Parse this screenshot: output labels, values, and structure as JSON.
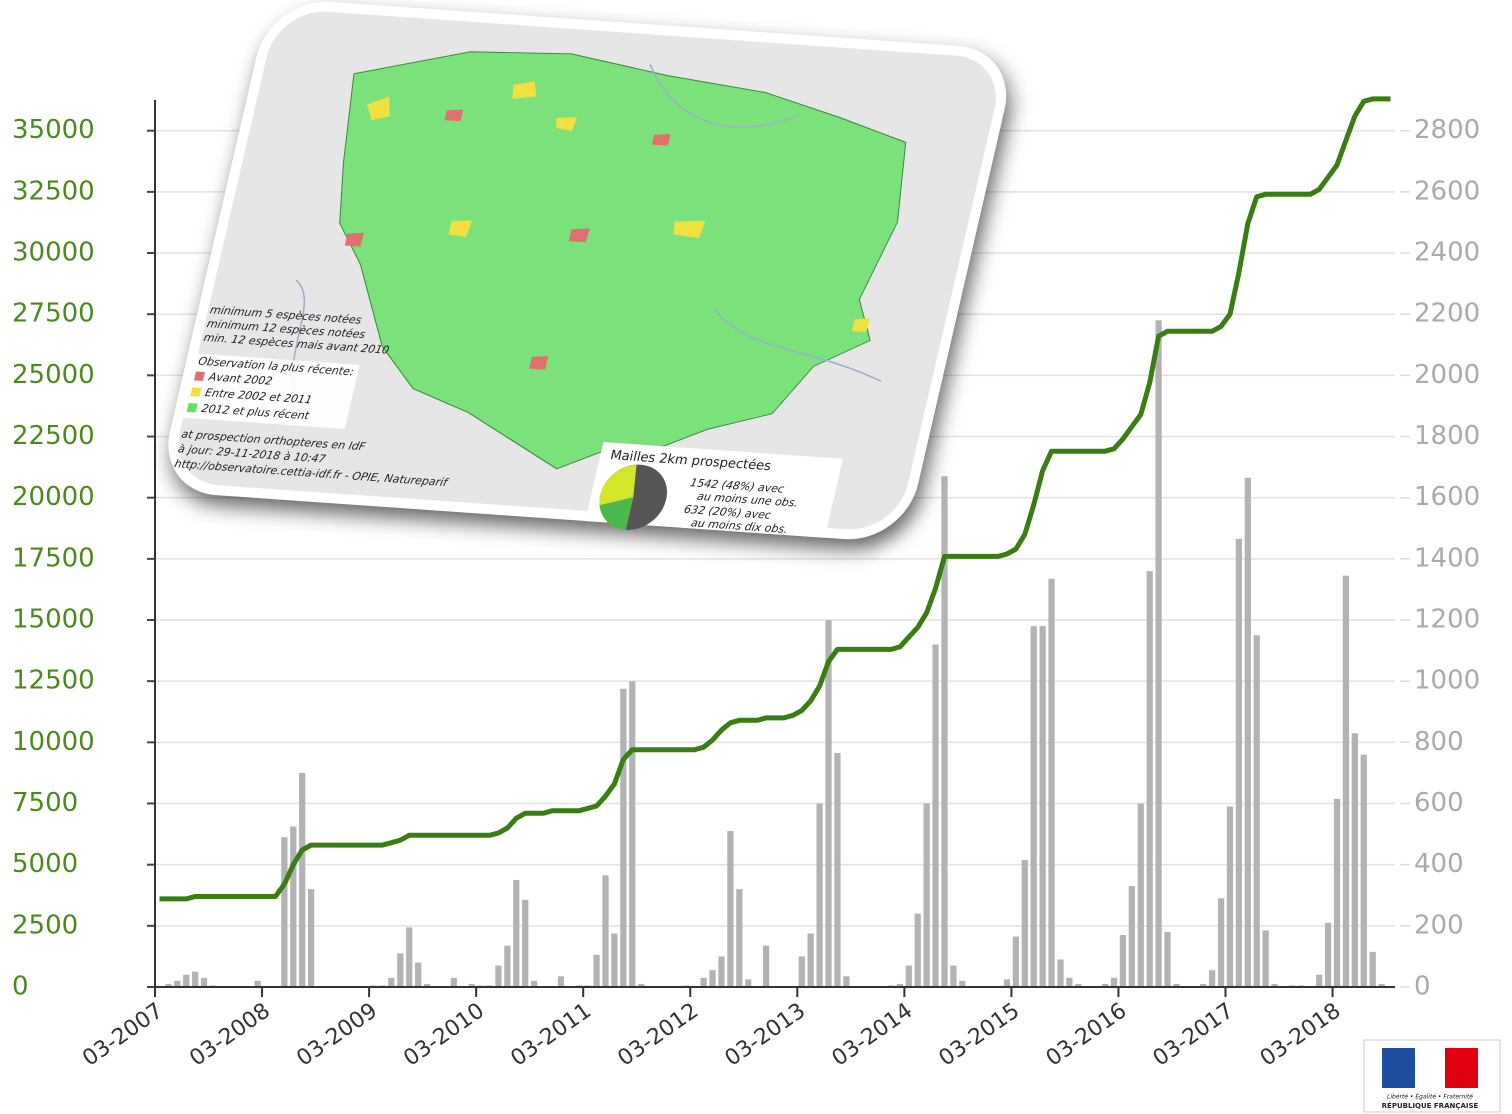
{
  "chart_data": {
    "type": "combo",
    "categories": [
      "03-2007",
      null,
      null,
      null,
      null,
      null,
      null,
      null,
      null,
      null,
      null,
      null,
      "03-2008",
      null,
      null,
      null,
      null,
      null,
      null,
      null,
      null,
      null,
      null,
      null,
      "03-2009",
      null,
      null,
      null,
      null,
      null,
      null,
      null,
      null,
      null,
      null,
      null,
      "03-2010",
      null,
      null,
      null,
      null,
      null,
      null,
      null,
      null,
      null,
      null,
      null,
      "03-2011",
      null,
      null,
      null,
      null,
      null,
      null,
      null,
      null,
      null,
      null,
      null,
      "03-2012",
      null,
      null,
      null,
      null,
      null,
      null,
      null,
      null,
      null,
      null,
      null,
      "03-2013",
      null,
      null,
      null,
      null,
      null,
      null,
      null,
      null,
      null,
      null,
      null,
      "03-2014",
      null,
      null,
      null,
      null,
      null,
      null,
      null,
      null,
      null,
      null,
      null,
      "03-2015",
      null,
      null,
      null,
      null,
      null,
      null,
      null,
      null,
      null,
      null,
      null,
      "03-2016",
      null,
      null,
      null,
      null,
      null,
      null,
      null,
      null,
      null,
      null,
      null,
      "03-2017",
      null,
      null,
      null,
      null,
      null,
      null,
      null,
      null,
      null,
      null,
      null,
      "03-2018",
      null,
      null,
      null,
      null,
      null,
      null
    ],
    "series": [
      {
        "type": "bar",
        "axis": "y2",
        "color": "#b3b3b3",
        "values": [
          0,
          10,
          20,
          40,
          50,
          30,
          5,
          0,
          0,
          0,
          0,
          20,
          0,
          0,
          490,
          525,
          700,
          320,
          0,
          0,
          0,
          0,
          0,
          0,
          5,
          5,
          30,
          110,
          195,
          80,
          10,
          0,
          0,
          30,
          0,
          10,
          5,
          5,
          70,
          135,
          350,
          285,
          20,
          0,
          0,
          35,
          0,
          5,
          5,
          105,
          365,
          175,
          975,
          1000,
          10,
          0,
          0,
          0,
          0,
          5,
          0,
          30,
          55,
          100,
          510,
          320,
          25,
          0,
          135,
          0,
          0,
          0,
          100,
          175,
          600,
          1200,
          765,
          35,
          0,
          0,
          0,
          0,
          5,
          10,
          70,
          240,
          600,
          1120,
          1670,
          70,
          20,
          0,
          0,
          0,
          0,
          25,
          165,
          415,
          1180,
          1180,
          1335,
          90,
          30,
          10,
          0,
          0,
          10,
          30,
          170,
          330,
          600,
          1360,
          2180,
          180,
          10,
          0,
          0,
          10,
          55,
          290,
          590,
          1465,
          1665,
          1150,
          185,
          10,
          0,
          5,
          5,
          0,
          40,
          210,
          615,
          1345,
          830,
          760,
          115,
          10,
          0
        ]
      },
      {
        "type": "line",
        "color": "#3a7d12",
        "values": [
          3600,
          3600,
          3600,
          3600,
          3700,
          3700,
          3700,
          3700,
          3700,
          3700,
          3700,
          3700,
          3700,
          3700,
          4200,
          5000,
          5600,
          5800,
          5800,
          5800,
          5800,
          5800,
          5800,
          5800,
          5800,
          5800,
          5900,
          6000,
          6200,
          6200,
          6200,
          6200,
          6200,
          6200,
          6200,
          6200,
          6200,
          6200,
          6300,
          6500,
          6900,
          7100,
          7100,
          7100,
          7200,
          7200,
          7200,
          7200,
          7300,
          7400,
          7800,
          8300,
          9300,
          9700,
          9700,
          9700,
          9700,
          9700,
          9700,
          9700,
          9700,
          9800,
          10100,
          10500,
          10800,
          10900,
          10900,
          10900,
          11000,
          11000,
          11000,
          11100,
          11300,
          11700,
          12300,
          13300,
          13800,
          13800,
          13800,
          13800,
          13800,
          13800,
          13800,
          13900,
          14300,
          14700,
          15300,
          16300,
          17600,
          17600,
          17600,
          17600,
          17600,
          17600,
          17600,
          17700,
          17900,
          18500,
          19700,
          21100,
          21900,
          21900,
          21900,
          21900,
          21900,
          21900,
          21900,
          22000,
          22400,
          22900,
          23400,
          24700,
          26600,
          26800,
          26800,
          26800,
          26800,
          26800,
          26800,
          27000,
          27500,
          29200,
          31200,
          32300,
          32400,
          32400,
          32400,
          32400,
          32400,
          32400,
          32600,
          33100,
          33600,
          34600,
          35600,
          36200,
          36300,
          36300,
          36300
        ]
      }
    ],
    "ylim": [
      0,
      36500
    ],
    "yticks": [
      0,
      2500,
      5000,
      7500,
      10000,
      12500,
      15000,
      17500,
      20000,
      22500,
      25000,
      27500,
      30000,
      32500,
      35000
    ],
    "y2lim": [
      0,
      2920
    ],
    "y2ticks": [
      0,
      200,
      400,
      600,
      800,
      1000,
      1200,
      1400,
      1600,
      1800,
      2000,
      2200,
      2400,
      2600,
      2800
    ],
    "grid": true
  },
  "inset": {
    "legend": [
      "minimum 5 espèces notées",
      "minimum 12 espèces notées",
      "min. 12 espèces mais avant 2010"
    ],
    "recent_title": "Observation la plus récente:",
    "recent": [
      "Avant 2002",
      "Entre 2002 et 2011",
      "2012 et plus récent"
    ],
    "credits": [
      "at prospection orthopteres en IdF",
      "à jour: 29-11-2018 à 10:47",
      "http://observatoire.cettia-idf.fr - OPIE, Natureparif"
    ],
    "pie_title": "Mailles 2km prospectées",
    "pie_texts": [
      "1542 (48%) avec",
      "au moins une obs.",
      "632 (20%) avec",
      "au moins dix obs."
    ],
    "pie": [
      48,
      20
    ]
  },
  "logo": {
    "motto": "Liberté • Égalité • Fraternité",
    "name": "RÉPUBLIQUE FRANÇAISE"
  }
}
